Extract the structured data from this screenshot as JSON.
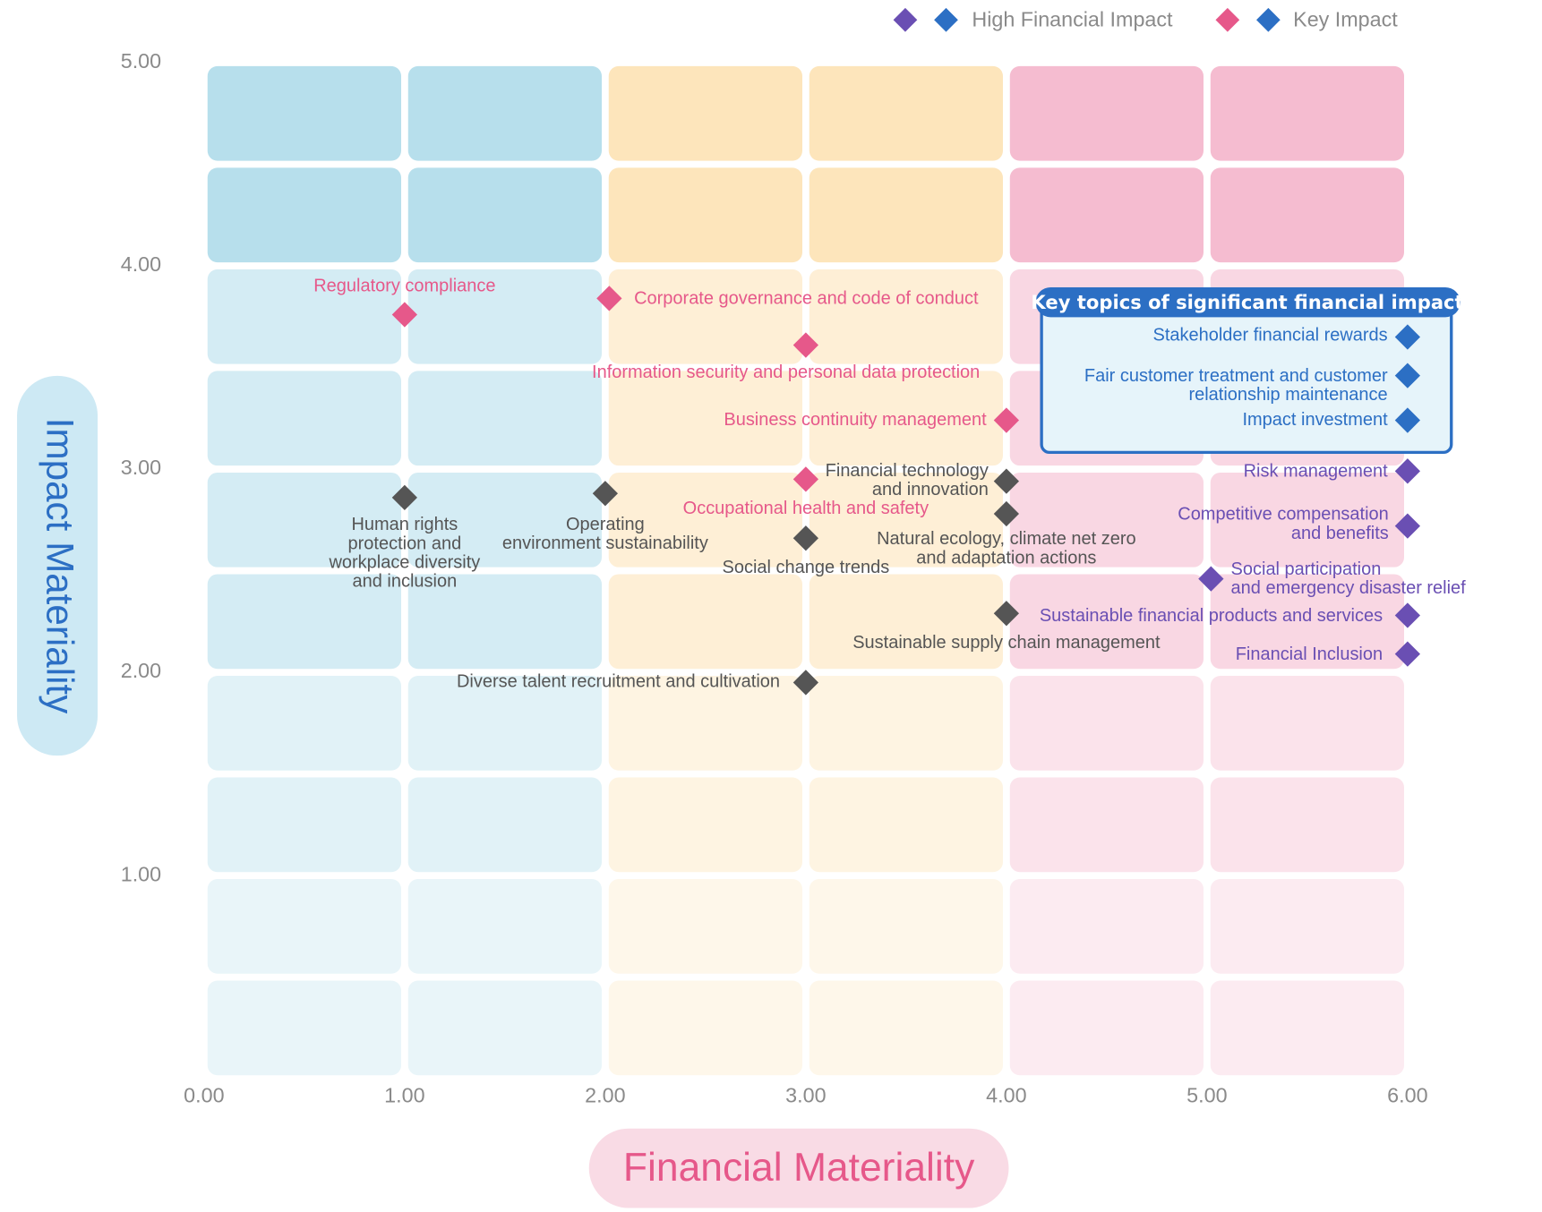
{
  "chart_data": {
    "type": "scatter",
    "xlabel": "Financial Materiality",
    "ylabel": "Impact Materiality",
    "xlim": [
      0,
      6
    ],
    "ylim": [
      0,
      5
    ],
    "xticks": [
      {
        "value": 0,
        "label": "0.00"
      },
      {
        "value": 1,
        "label": "1.00"
      },
      {
        "value": 2,
        "label": "2.00"
      },
      {
        "value": 3,
        "label": "3.00"
      },
      {
        "value": 4,
        "label": "4.00"
      },
      {
        "value": 5,
        "label": "5.00"
      },
      {
        "value": 6,
        "label": "6.00"
      }
    ],
    "yticks": [
      {
        "value": 1,
        "label": "1.00"
      },
      {
        "value": 2,
        "label": "2.00"
      },
      {
        "value": 3,
        "label": "3.00"
      },
      {
        "value": 4,
        "label": "4.00"
      },
      {
        "value": 5,
        "label": "5.00"
      }
    ],
    "legend": [
      {
        "label": "High Financial Impact",
        "colors": [
          "#6a4fb3",
          "#2c6fc4"
        ]
      },
      {
        "label": "Key Impact",
        "colors": [
          "#e6588a",
          "#2c6fc4"
        ]
      }
    ],
    "box_title": "Key topics of significant financial impact",
    "series": [
      {
        "color": "#e6588a",
        "x": [
          1.0,
          2.02,
          3.0,
          4.0,
          3.0
        ],
        "values": [
          3.76,
          3.84,
          3.61,
          3.24,
          2.95
        ],
        "labels": [
          [
            "Regulatory compliance"
          ],
          [
            "Corporate governance and code of conduct"
          ],
          [
            "Information security and personal data protection"
          ],
          [
            "Business continuity management"
          ],
          [
            "Occupational health and safety"
          ]
        ]
      },
      {
        "color": "#555555",
        "x": [
          1.0,
          2.0,
          3.0,
          4.0,
          4.0,
          4.0,
          3.0
        ],
        "values": [
          2.86,
          2.88,
          2.66,
          2.94,
          2.78,
          2.29,
          1.95
        ],
        "labels": [
          [
            "Human rights",
            "protection and",
            "workplace diversity",
            "and inclusion"
          ],
          [
            "Operating",
            "environment sustainability"
          ],
          [
            "Social change trends"
          ],
          [
            "Financial technology",
            "and innovation"
          ],
          [
            "Natural ecology, climate net zero",
            "and adaptation actions"
          ],
          [
            "Sustainable supply chain management"
          ],
          [
            "Diverse talent recruitment and cultivation"
          ]
        ]
      },
      {
        "color": "#6a4fb3",
        "x": [
          6.0,
          6.0,
          5.02,
          6.0,
          6.0
        ],
        "values": [
          2.99,
          2.72,
          2.46,
          2.28,
          2.09
        ],
        "labels": [
          [
            "Risk management"
          ],
          [
            "Competitive compensation",
            "and benefits"
          ],
          [
            "Social participation",
            "and emergency disaster relief"
          ],
          [
            "Sustainable financial products and services"
          ],
          [
            "Financial Inclusion"
          ]
        ]
      },
      {
        "color": "#2c6fc4",
        "x": [
          6.0,
          6.0,
          6.0
        ],
        "values": [
          3.65,
          3.46,
          3.24
        ],
        "labels": [
          [
            "Stakeholder financial rewards"
          ],
          [
            "Fair customer treatment and customer",
            "relationship maintenance"
          ],
          [
            "Impact investment"
          ]
        ]
      }
    ]
  }
}
